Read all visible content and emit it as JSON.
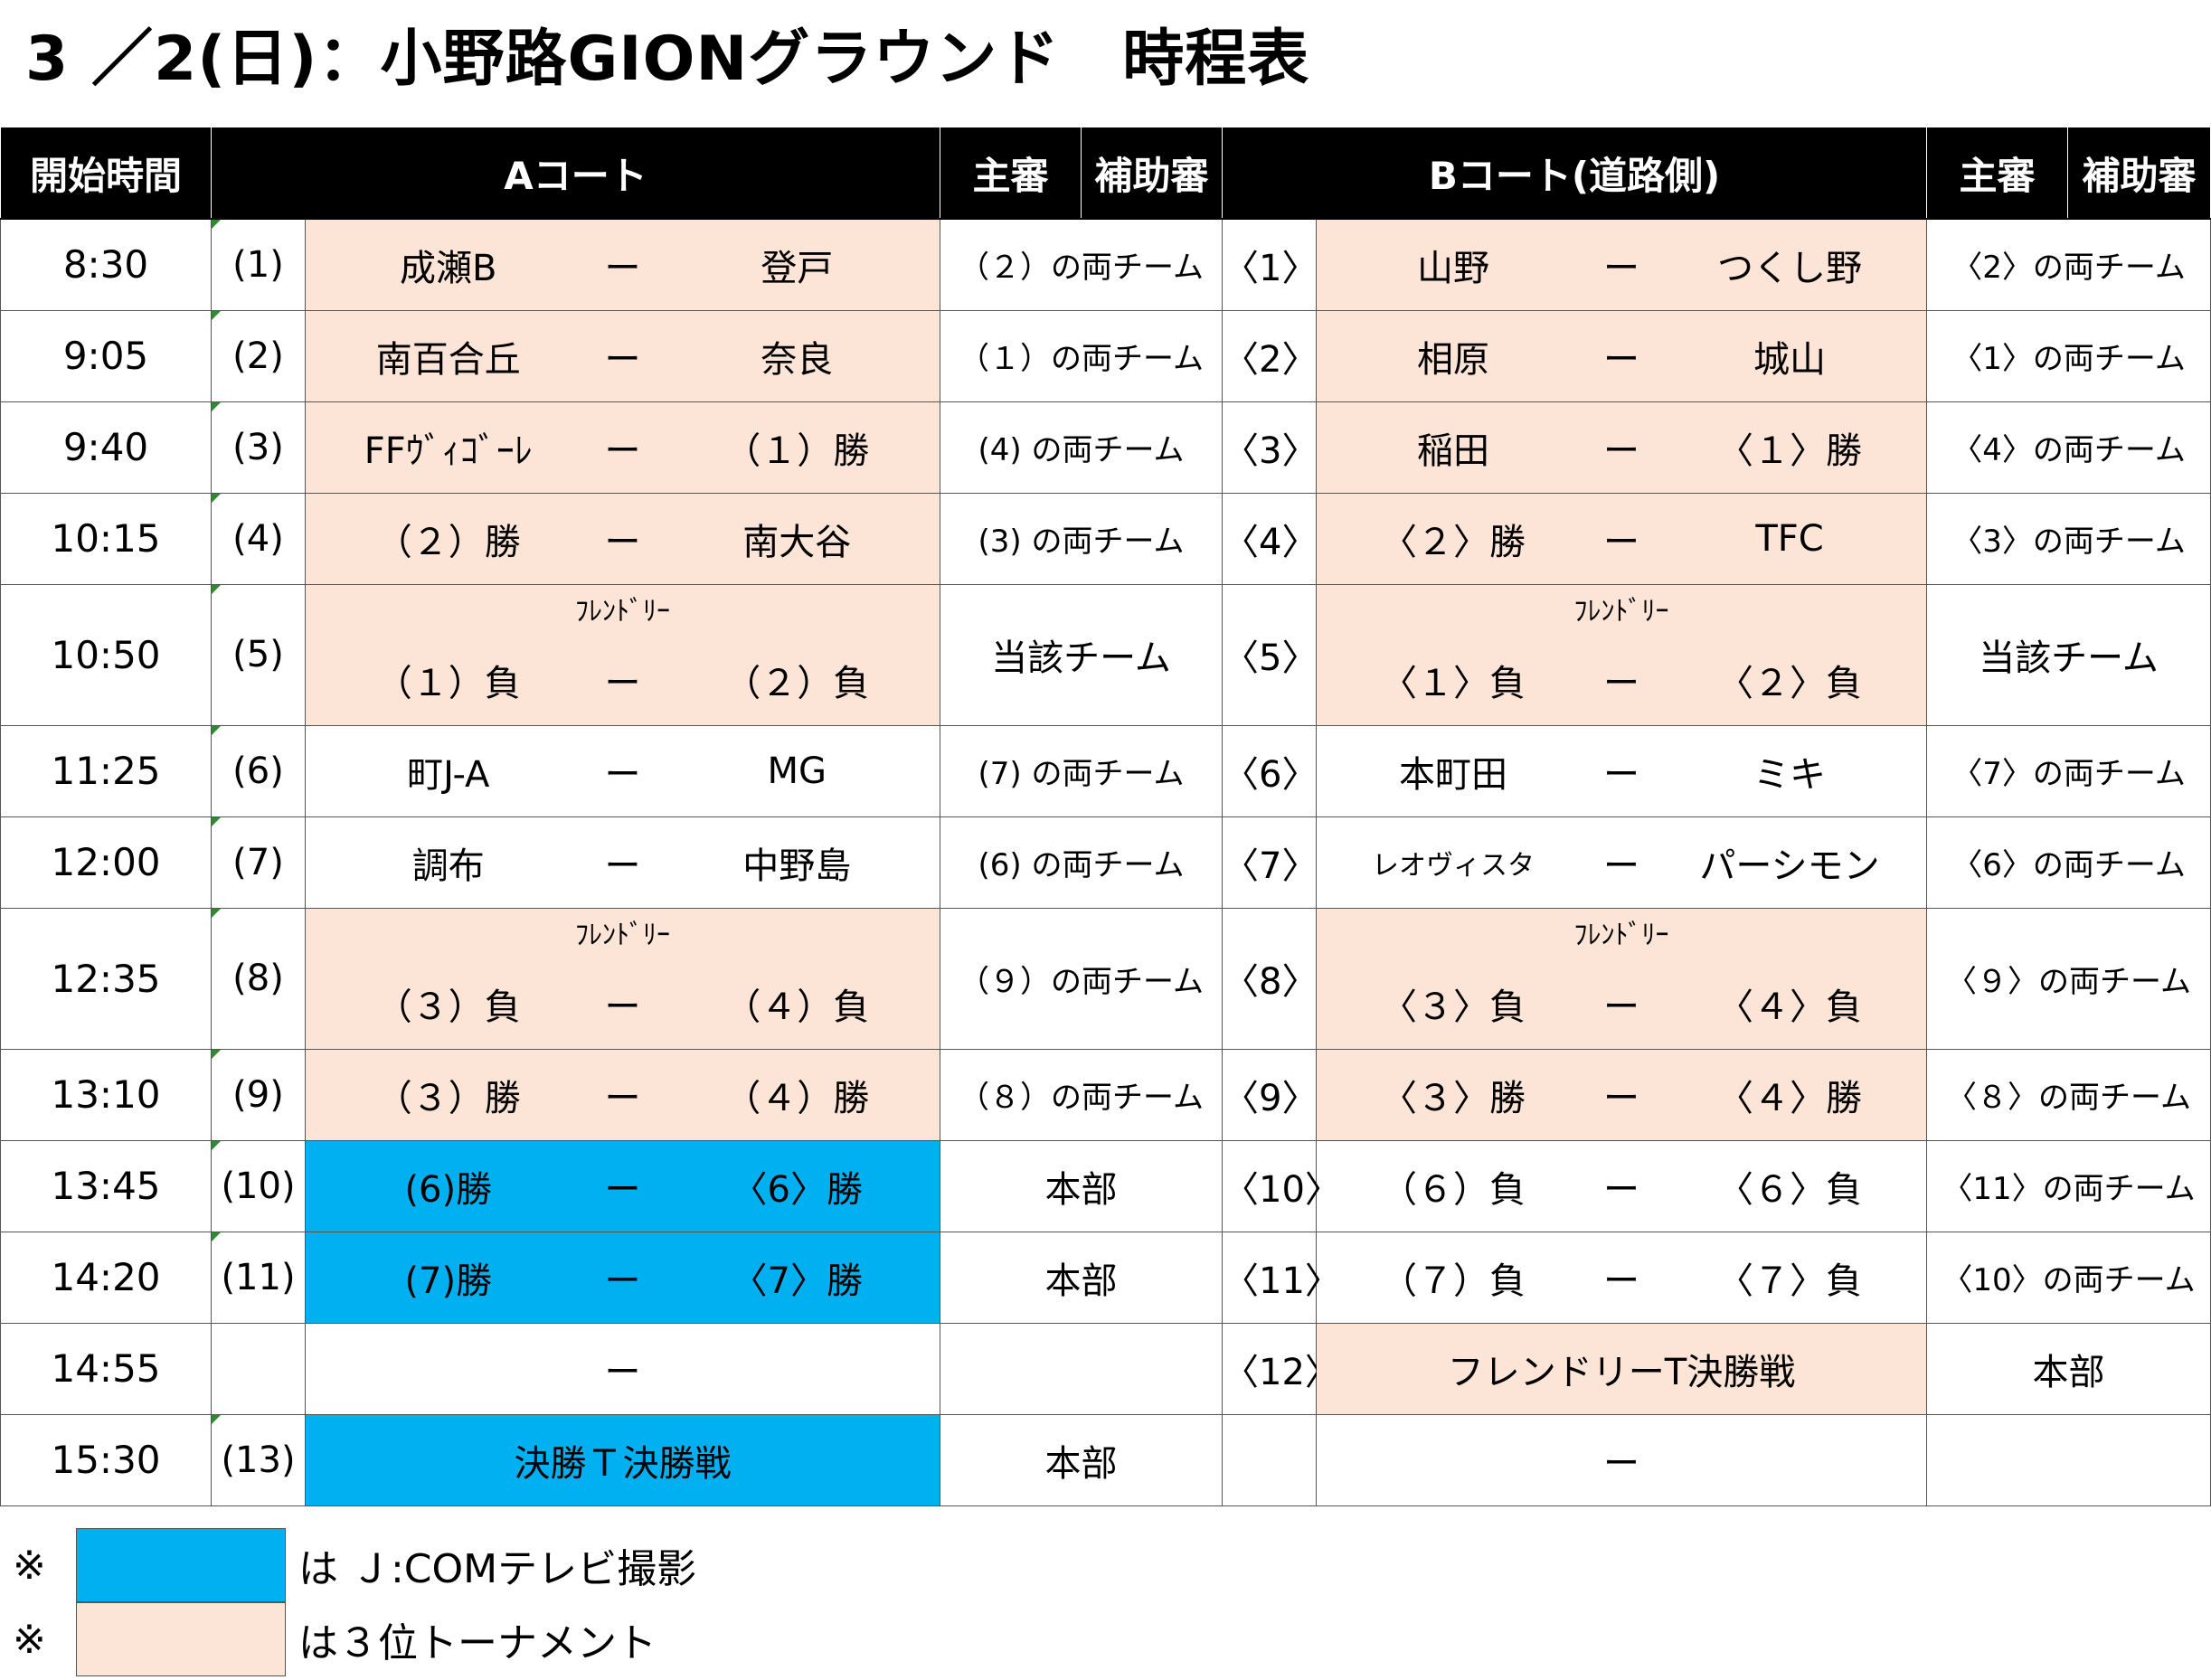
{
  "title": "3 ／2(日)：小野路GIONグラウンド　時程表",
  "headers": {
    "time": "開始時間",
    "a_court": "Aコート",
    "b_court": "Bコート(道路側)",
    "main_ref": "主審",
    "assist_ref": "補助審"
  },
  "friendly_label": "ﾌﾚﾝﾄﾞﾘｰ",
  "dash": "ー",
  "rows": [
    {
      "time": "8:30",
      "a_no": "(1)",
      "a_t1": "成瀬B",
      "a_t2": "登戸",
      "a_ref": "（２）の両チーム",
      "b_no": "〈1〉",
      "b_t1": "山野",
      "b_t2": "つくし野",
      "b_ref": "〈2〉の両チーム"
    },
    {
      "time": "9:05",
      "a_no": "(2)",
      "a_t1": "南百合丘",
      "a_t2": "奈良",
      "a_ref": "（１）の両チーム",
      "b_no": "〈2〉",
      "b_t1": "相原",
      "b_t2": "城山",
      "b_ref": "〈1〉の両チーム"
    },
    {
      "time": "9:40",
      "a_no": "(3)",
      "a_t1": "FFｳﾞｨｺﾞｰﾚ",
      "a_t2": "（１）勝",
      "a_ref": "(4) の両チーム",
      "b_no": "〈3〉",
      "b_t1": "稲田",
      "b_t2": "〈１〉勝",
      "b_ref": "〈4〉の両チーム"
    },
    {
      "time": "10:15",
      "a_no": "(4)",
      "a_t1": "（２）勝",
      "a_t2": "南大谷",
      "a_ref": "(3) の両チーム",
      "b_no": "〈4〉",
      "b_t1": "〈２〉勝",
      "b_t2": "TFC",
      "b_ref": "〈3〉の両チーム"
    },
    {
      "time": "10:50",
      "a_no": "(5)",
      "a_t1": "（１）負",
      "a_t2": "（２）負",
      "a_ref": "当該チーム",
      "b_no": "〈5〉",
      "b_t1": "〈１〉負",
      "b_t2": "〈２〉負",
      "b_ref": "当該チーム"
    },
    {
      "time": "11:25",
      "a_no": "(6)",
      "a_t1": "町J-A",
      "a_t2": "MG",
      "a_ref": "(7) の両チーム",
      "b_no": "〈6〉",
      "b_t1": "本町田",
      "b_t2": "ミキ",
      "b_ref": "〈7〉の両チーム"
    },
    {
      "time": "12:00",
      "a_no": "(7)",
      "a_t1": "調布",
      "a_t2": "中野島",
      "a_ref": "(6) の両チーム",
      "b_no": "〈7〉",
      "b_t1": "レオヴィスタ",
      "b_t2": "パーシモン",
      "b_ref": "〈6〉の両チーム"
    },
    {
      "time": "12:35",
      "a_no": "(8)",
      "a_t1": "（３）負",
      "a_t2": "（４）負",
      "a_ref": "（９）の両チーム",
      "b_no": "〈8〉",
      "b_t1": "〈３〉負",
      "b_t2": "〈４〉負",
      "b_ref": "〈９〉の両チーム"
    },
    {
      "time": "13:10",
      "a_no": "(9)",
      "a_t1": "（３）勝",
      "a_t2": "（４）勝",
      "a_ref": "（８）の両チーム",
      "b_no": "〈9〉",
      "b_t1": "〈３〉勝",
      "b_t2": "〈４〉勝",
      "b_ref": "〈８〉の両チーム"
    },
    {
      "time": "13:45",
      "a_no": "(10)",
      "a_t1": "(6)勝",
      "a_t2": "〈6〉勝",
      "a_ref": "本部",
      "b_no": "〈10〉",
      "b_t1": "（６）負",
      "b_t2": "〈６〉負",
      "b_ref": "〈11〉の両チーム"
    },
    {
      "time": "14:20",
      "a_no": "(11)",
      "a_t1": "(7)勝",
      "a_t2": "〈7〉勝",
      "a_ref": "本部",
      "b_no": "〈11〉",
      "b_t1": "（７）負",
      "b_t2": "〈７〉負",
      "b_ref": "〈10〉の両チーム"
    },
    {
      "time": "14:55",
      "a_no": "",
      "a_single": "ー",
      "a_ref": "",
      "b_no": "〈12〉",
      "b_single": "フレンドリーT決勝戦",
      "b_ref": "本部"
    },
    {
      "time": "15:30",
      "a_no": "(13)",
      "a_single": "決勝Ｔ決勝戦",
      "a_ref": "本部",
      "b_no": "",
      "b_single": "ー",
      "b_ref": ""
    }
  ],
  "legend": {
    "mark": "※",
    "blue_text": "は Ｊ:COMテレビ撮影",
    "peach_text": "は３位トーナメント"
  },
  "colors": {
    "peach": "#fce4d6",
    "blue": "#00b0f0",
    "header": "#000000"
  }
}
